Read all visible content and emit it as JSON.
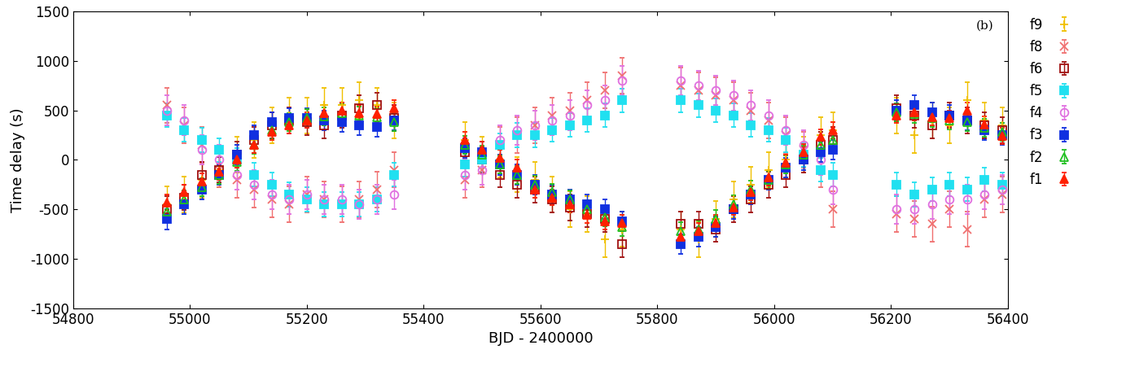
{
  "chart_data": {
    "type": "scatter",
    "x_label": "BJD - 2400000",
    "y_label": "Time delay (s)",
    "annotations": [
      "(b)"
    ],
    "xlim": [
      54800,
      56400
    ],
    "xticks": [
      54800,
      55000,
      55200,
      55400,
      55600,
      55800,
      56000,
      56200,
      56400
    ],
    "ylim": [
      -1500,
      1500
    ],
    "yticks": [
      -1500,
      -1000,
      -500,
      0,
      500,
      1000,
      1500
    ],
    "grid": false,
    "legend": "right",
    "x": [
      54960,
      54990,
      55020,
      55050,
      55080,
      55110,
      55140,
      55170,
      55200,
      55230,
      55260,
      55290,
      55320,
      55350,
      55470,
      55500,
      55530,
      55560,
      55590,
      55620,
      55650,
      55680,
      55710,
      55740,
      55840,
      55870,
      55900,
      55930,
      55960,
      55990,
      56020,
      56050,
      56080,
      56100,
      56210,
      56240,
      56270,
      56300,
      56330,
      56360,
      56390
    ],
    "series": [
      {
        "name": "f9",
        "color": "#f0c000",
        "marker": "plus",
        "error": 180,
        "values": [
          -450,
          -350,
          -200,
          -100,
          50,
          200,
          350,
          450,
          450,
          550,
          550,
          600,
          550,
          400,
          200,
          50,
          0,
          -150,
          -200,
          -350,
          -500,
          -550,
          -800,
          -700,
          -700,
          -800,
          -600,
          -400,
          -250,
          -100,
          0,
          50,
          250,
          300,
          450,
          250,
          400,
          350,
          600,
          400,
          350
        ]
      },
      {
        "name": "f8",
        "color": "#f07070",
        "marker": "x",
        "error": 180,
        "values": [
          550,
          350,
          150,
          -100,
          -200,
          -300,
          -400,
          -450,
          -350,
          -400,
          -450,
          -400,
          -300,
          -100,
          -200,
          -100,
          150,
          250,
          350,
          450,
          500,
          600,
          700,
          850,
          750,
          700,
          650,
          600,
          500,
          400,
          250,
          100,
          -100,
          -500,
          -550,
          -600,
          -650,
          -500,
          -700,
          -400,
          -350
        ]
      },
      {
        "name": "f6",
        "color": "#a01010",
        "marker": "open_square",
        "error": 130,
        "values": [
          -500,
          -380,
          -150,
          -100,
          50,
          200,
          350,
          400,
          380,
          350,
          450,
          520,
          550,
          420,
          80,
          0,
          -150,
          -250,
          -300,
          -400,
          -480,
          -550,
          -600,
          -850,
          -650,
          -650,
          -700,
          -500,
          -400,
          -250,
          -150,
          0,
          150,
          200,
          520,
          450,
          350,
          450,
          400,
          350,
          300
        ]
      },
      {
        "name": "f5",
        "color": "#20e0f0",
        "marker": "square",
        "error": 120,
        "values": [
          450,
          300,
          200,
          100,
          0,
          -150,
          -250,
          -350,
          -400,
          -450,
          -450,
          -450,
          -400,
          -150,
          -50,
          0,
          150,
          250,
          250,
          300,
          350,
          400,
          450,
          600,
          600,
          550,
          500,
          450,
          350,
          300,
          200,
          50,
          -100,
          -150,
          -250,
          -350,
          -300,
          -250,
          -300,
          -200,
          -250
        ]
      },
      {
        "name": "f4",
        "color": "#e070e0",
        "marker": "open_circle",
        "error": 150,
        "values": [
          500,
          400,
          100,
          0,
          -150,
          -250,
          -350,
          -400,
          -350,
          -400,
          -400,
          -450,
          -400,
          -350,
          -150,
          -100,
          200,
          300,
          350,
          400,
          450,
          550,
          600,
          800,
          800,
          750,
          700,
          650,
          550,
          450,
          300,
          150,
          0,
          -300,
          -500,
          -500,
          -450,
          -400,
          -400,
          -350,
          -300
        ]
      },
      {
        "name": "f3",
        "color": "#1030e0",
        "marker": "square",
        "error": 100,
        "values": [
          -600,
          -450,
          -300,
          -150,
          50,
          250,
          380,
          420,
          420,
          400,
          380,
          350,
          330,
          400,
          120,
          80,
          -50,
          -150,
          -250,
          -350,
          -400,
          -450,
          -500,
          -620,
          -850,
          -780,
          -680,
          -500,
          -350,
          -200,
          -80,
          0,
          80,
          100,
          500,
          550,
          480,
          450,
          400,
          300,
          250
        ]
      },
      {
        "name": "f2",
        "color": "#20c020",
        "marker": "open_triangle",
        "error": 90,
        "values": [
          -520,
          -400,
          -280,
          -150,
          -20,
          150,
          300,
          380,
          420,
          440,
          470,
          450,
          430,
          380,
          150,
          50,
          -50,
          -150,
          -250,
          -330,
          -400,
          -500,
          -580,
          -680,
          -720,
          -700,
          -600,
          -450,
          -300,
          -200,
          -50,
          50,
          150,
          200,
          480,
          460,
          420,
          400,
          380,
          320,
          280
        ]
      },
      {
        "name": "f1",
        "color": "#ff2000",
        "marker": "triangle",
        "error": 80,
        "values": [
          -430,
          -330,
          -220,
          -120,
          0,
          150,
          280,
          350,
          400,
          470,
          500,
          470,
          460,
          520,
          200,
          100,
          20,
          -80,
          -300,
          -380,
          -450,
          -560,
          -620,
          -640,
          -780,
          -720,
          -640,
          -480,
          -330,
          -180,
          -30,
          80,
          230,
          300,
          450,
          480,
          430,
          420,
          500,
          360,
          240
        ]
      }
    ]
  }
}
